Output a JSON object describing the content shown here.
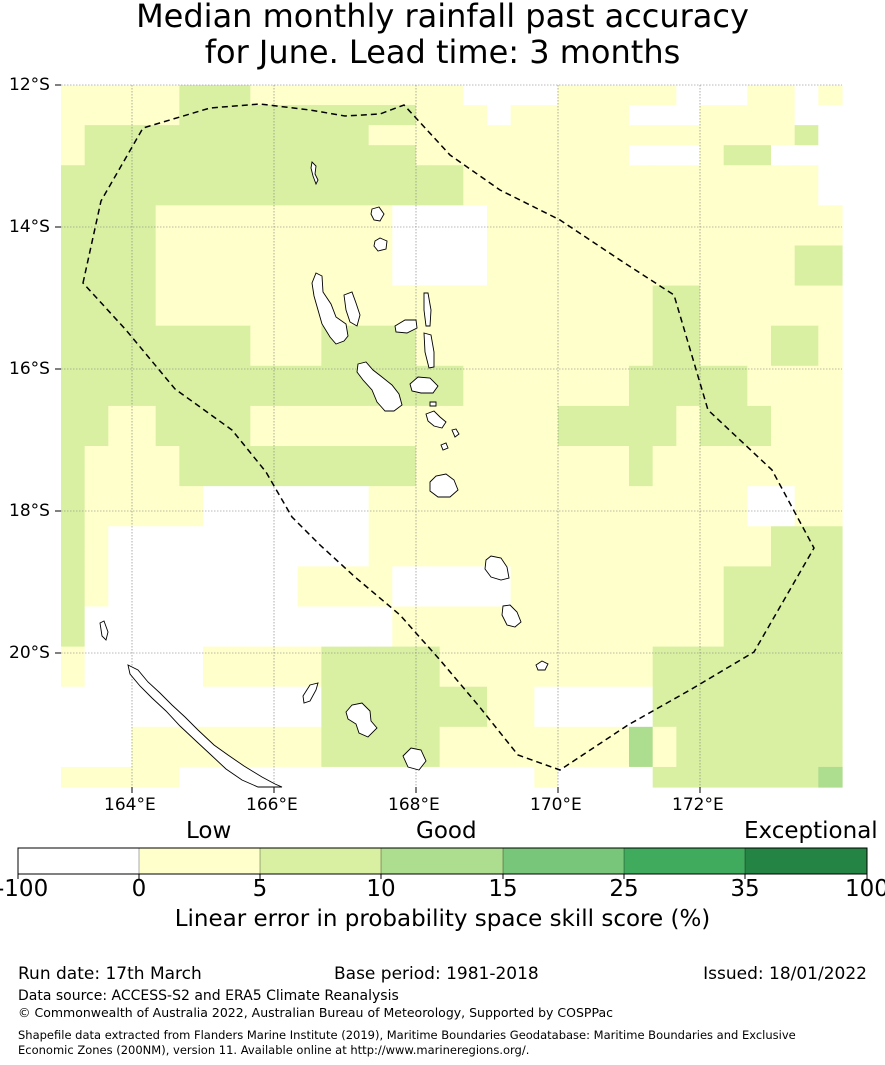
{
  "title_line1": "Median monthly rainfall past accuracy",
  "title_line2": "for June. Lead time: 3 months",
  "lat_labels": [
    "12°S",
    "14°S",
    "16°S",
    "18°S",
    "20°S"
  ],
  "lon_labels": [
    "164°E",
    "166°E",
    "168°E",
    "170°E",
    "172°E"
  ],
  "colorbar": {
    "category_labels": [
      "Low",
      "Good",
      "Exceptional"
    ],
    "tick_labels": [
      "-100",
      "0",
      "5",
      "10",
      "15",
      "25",
      "35",
      "100"
    ],
    "colors": [
      "#ffffff",
      "#ffffcc",
      "#d9f0a3",
      "#addd8e",
      "#78c679",
      "#41ab5d",
      "#238443"
    ],
    "label": "Linear error in probability space skill score (%)"
  },
  "legend_bins": [
    {
      "range": "-100 to 0",
      "color": "#ffffff"
    },
    {
      "range": "0 to 5",
      "color": "#ffffcc"
    },
    {
      "range": "5 to 10",
      "color": "#d9f0a3"
    },
    {
      "range": "10 to 15",
      "color": "#addd8e"
    }
  ],
  "footer": {
    "run_date": "Run date: 17th March",
    "base_period": "Base period: 1981-2018",
    "issued": "Issued: 18/01/2022",
    "data_source": "Data source: ACCESS-S2 and ERA5 Climate Reanalysis",
    "copyright": "© Commonwealth of Australia 2022, Australian Bureau of Meteorology, Supported by COSPPac",
    "shapefile_line1": "Shapefile data extracted from Flanders Marine Institute (2019), Maritime Boundaries Geodatabase: Maritime Boundaries and Exclusive",
    "shapefile_line2": "Economic Zones (200NM), version 11. Available online at http://www.marineregions.org/."
  },
  "grid_rows": [
    "111112221111111110000111110001101",
    "111112222222222111011111000111100",
    "122222222222211111111111111111120",
    "122222222222222111111111000122000",
    "222222222222222221111111111111110",
    "222222222222222221111111111111110",
    "222211111111110000111111111111111",
    "222211111111110000111111111111111",
    "222211111111110000111111111111122",
    "222211111111110000111111111111122",
    "222211111111111111111111122111111",
    "222211111111111111111111122111111",
    "222222221112222111111111122111221",
    "222222221112222111111111122111221",
    "222222222222222221111111222221111",
    "222222222222222221111111222221111",
    "221122221111111111111222221222111",
    "221122221111111111111222221222111",
    "211112222222222111111111211111111",
    "211112222222222111111111211111111",
    "211111000000011111111111111110011",
    "211111000000011111111111111110011",
    "210000000000011111111111111111222",
    "210000000000011111111111111111222",
    "210000000011110000011111111122222",
    "210000000011110000011111111122222",
    "200000000000001111111111111122222",
    "200000000000001111111111111122222",
    "100000111112222211111111122222222",
    "100000111112222211111111122222222",
    "000000000002222222110000022222222",
    "000000000002222222110000022222222",
    "000111111112222211111111312222222",
    "000111111112222211111111312222222",
    "111110000000000000001000022222223"
  ]
}
